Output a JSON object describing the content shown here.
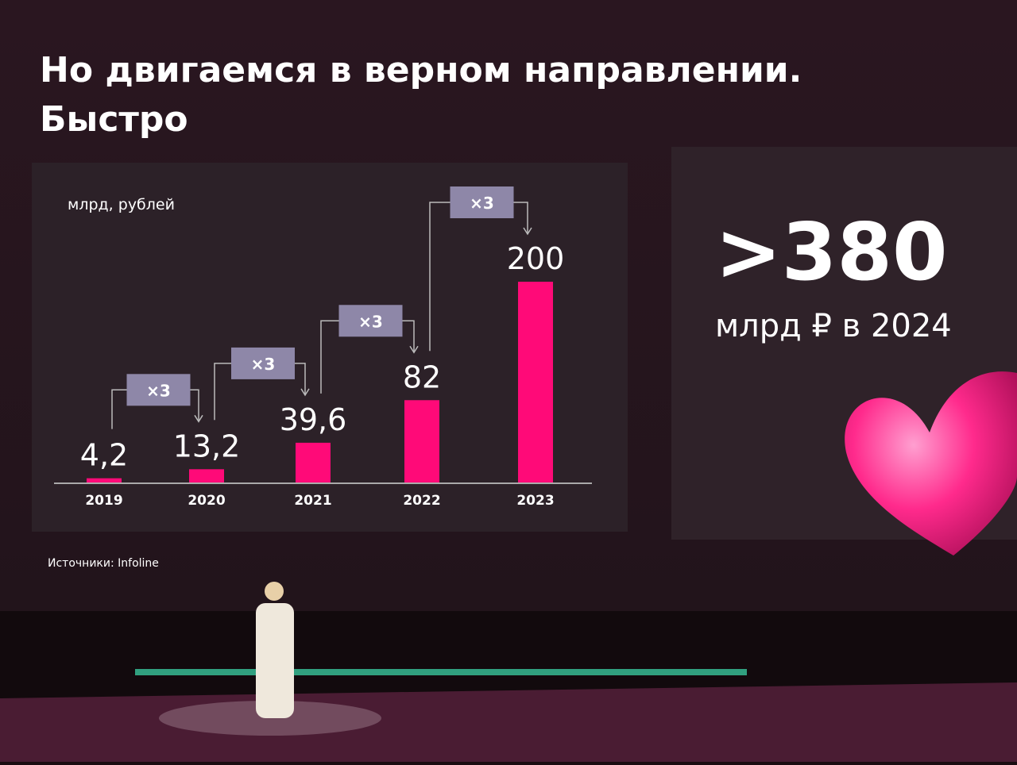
{
  "chart_data": {
    "type": "bar",
    "title": "Но двигаемся в верном направлении.",
    "subtitle": "Быстро",
    "y_label": "млрд, рублей",
    "categories": [
      "2019",
      "2020",
      "2021",
      "2022",
      "2023"
    ],
    "values": [
      4.2,
      13.2,
      39.6,
      82,
      200
    ],
    "value_labels": [
      "4,2",
      "13,2",
      "39,6",
      "82",
      "200"
    ],
    "color": "#ff0a78",
    "annotations": [
      "×3",
      "×3",
      "×3",
      "×3"
    ],
    "source": "Источники: Infoline"
  },
  "callout": {
    "text": ">380",
    "caption": "млрд ₽ в 2024"
  }
}
